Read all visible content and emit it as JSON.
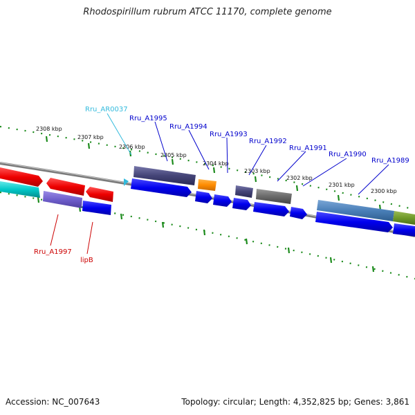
{
  "title": "Rhodospirillum rubrum ATCC 11170, complete genome",
  "accession": "Accession: NC_007643",
  "summary": "Topology: circular; Length: 4,352,825 bp; Genes: 3,861",
  "colors": {
    "ruler": "#1a8a1a",
    "backbone": "#808080",
    "forward_gene": "#0000ee",
    "reverse_gene": "#ee0000",
    "rna": "#00c8c8",
    "label_blue": "#0000cc",
    "label_red": "#cc0000",
    "label_cyan": "#33bbdd"
  },
  "kbp_ticks": [
    "2308 kbp",
    "2307 kbp",
    "2306 kbp",
    "2305 kbp",
    "2304 kbp",
    "2303 kbp",
    "2302 kbp",
    "2301 kbp",
    "2300 kbp"
  ],
  "gene_labels": [
    {
      "text": "Rru_AR0037",
      "color": "#33bbdd"
    },
    {
      "text": "Rru_A1995",
      "color": "#0000cc"
    },
    {
      "text": "Rru_A1994",
      "color": "#0000cc"
    },
    {
      "text": "Rru_A1993",
      "color": "#0000cc"
    },
    {
      "text": "Rru_A1992",
      "color": "#0000cc"
    },
    {
      "text": "Rru_A1991",
      "color": "#0000cc"
    },
    {
      "text": "Rru_A1990",
      "color": "#0000cc"
    },
    {
      "text": "Rru_A1989",
      "color": "#0000cc"
    },
    {
      "text": "Rru_A1997",
      "color": "#cc0000"
    },
    {
      "text": "lipB",
      "color": "#cc0000"
    }
  ]
}
